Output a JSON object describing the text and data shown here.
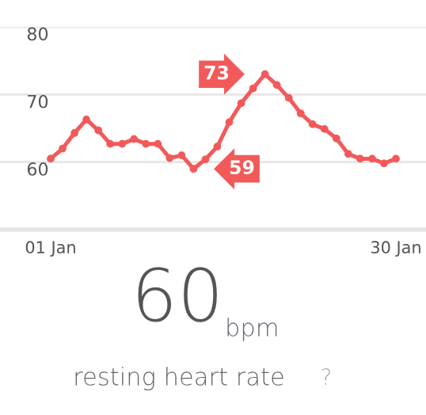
{
  "chart_data": {
    "type": "line",
    "categories": [
      "01 Jan",
      null,
      null,
      null,
      null,
      null,
      null,
      null,
      null,
      null,
      null,
      null,
      null,
      null,
      null,
      null,
      null,
      null,
      null,
      null,
      null,
      null,
      null,
      null,
      null,
      null,
      null,
      null,
      null,
      "30 Jan"
    ],
    "series": [
      {
        "color": "#f25a5a",
        "values": [
          60.5,
          62,
          64.3,
          66.3,
          64.7,
          62.7,
          62.7,
          63.4,
          62.7,
          62.7,
          60.6,
          61,
          59,
          60.4,
          62.3,
          65.9,
          68.7,
          70.9,
          73,
          71.4,
          69.5,
          67.2,
          65.6,
          64.9,
          63.5,
          61.2,
          60.5,
          60.5,
          59.8,
          60.5
        ],
        "value_labels": [
          null,
          null,
          null,
          null,
          null,
          null,
          null,
          null,
          null,
          null,
          null,
          null,
          "59",
          null,
          null,
          null,
          null,
          null,
          "73",
          null,
          null,
          null,
          null,
          null,
          null,
          null,
          null,
          null,
          null,
          null
        ]
      }
    ],
    "ylim": [
      50,
      80
    ],
    "yticks": [
      60,
      70,
      80
    ],
    "grid": "y",
    "marker": "circle",
    "line_style": "solid",
    "legend": false,
    "annotations": [
      "60",
      "bpm",
      "resting heart rate",
      "?"
    ]
  }
}
